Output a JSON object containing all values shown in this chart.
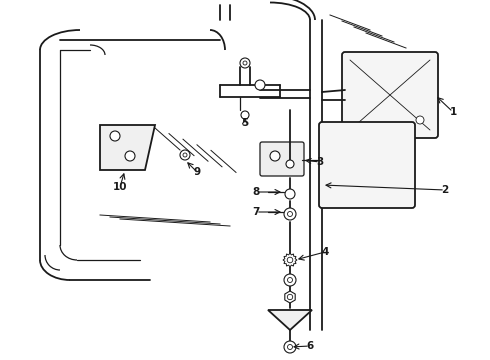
{
  "background_color": "#ffffff",
  "line_color": "#1a1a1a",
  "figsize": [
    4.9,
    3.6
  ],
  "dpi": 100,
  "lw_main": 1.3,
  "lw_med": 0.9,
  "lw_thin": 0.6,
  "font_size": 7.5
}
